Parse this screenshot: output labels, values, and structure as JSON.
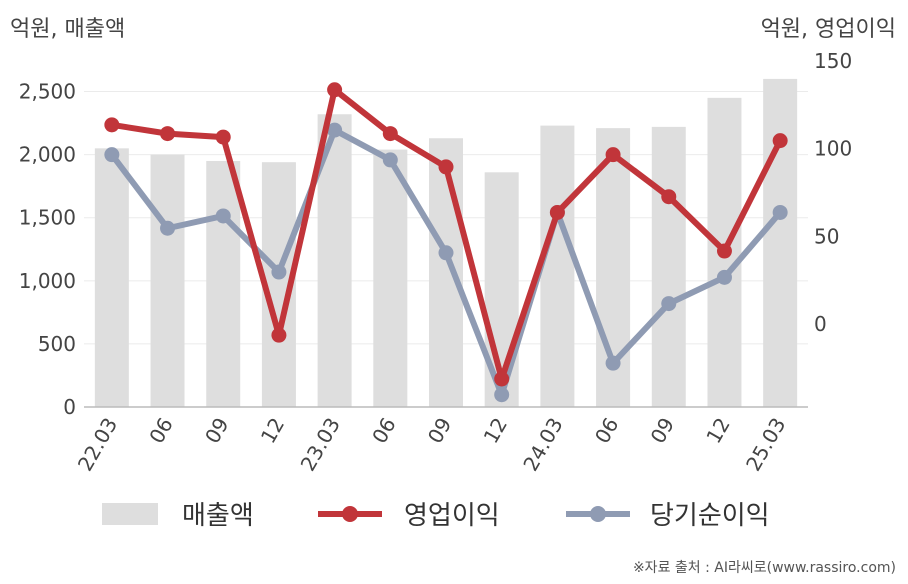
{
  "chart_data": {
    "type": "bar+line",
    "left_axis_label": "억원, 매출액",
    "right_axis_label": "억원, 영업이익",
    "categories": [
      "22.03",
      "06",
      "09",
      "12",
      "23.03",
      "06",
      "09",
      "12",
      "24.03",
      "06",
      "09",
      "12",
      "25.03"
    ],
    "left_axis": {
      "ylim": [
        0,
        2750
      ],
      "ticks": [
        0,
        500,
        1000,
        1500,
        2000,
        2500
      ],
      "tick_labels": [
        "0",
        "500",
        "1,000",
        "1,500",
        "2,000",
        "2,500"
      ]
    },
    "right_axis": {
      "ylim": [
        -48,
        150
      ],
      "ticks": [
        0,
        50,
        100,
        150
      ],
      "tick_labels": [
        "0",
        "50",
        "100",
        "150"
      ]
    },
    "series": [
      {
        "name": "매출액",
        "type": "bar",
        "axis": "left",
        "color": "#dedede",
        "values": [
          2050,
          2000,
          1950,
          1940,
          2320,
          2040,
          2130,
          1860,
          2230,
          2210,
          2220,
          2450,
          2600
        ]
      },
      {
        "name": "영업이익",
        "type": "line",
        "axis": "right",
        "color": "#c1353a",
        "values": [
          113,
          108,
          106,
          -7,
          133,
          108,
          89,
          -32,
          63,
          96,
          72,
          41,
          104
        ]
      },
      {
        "name": "당기순이익",
        "type": "line",
        "axis": "right",
        "color": "#8f9bb3",
        "values": [
          96,
          54,
          61,
          29,
          110,
          93,
          40,
          -41,
          63,
          -23,
          11,
          26,
          63
        ]
      }
    ],
    "grid": true,
    "legend_position": "bottom"
  },
  "source_note": "※자료 출처 : AI라씨로(www.rassiro.com)"
}
